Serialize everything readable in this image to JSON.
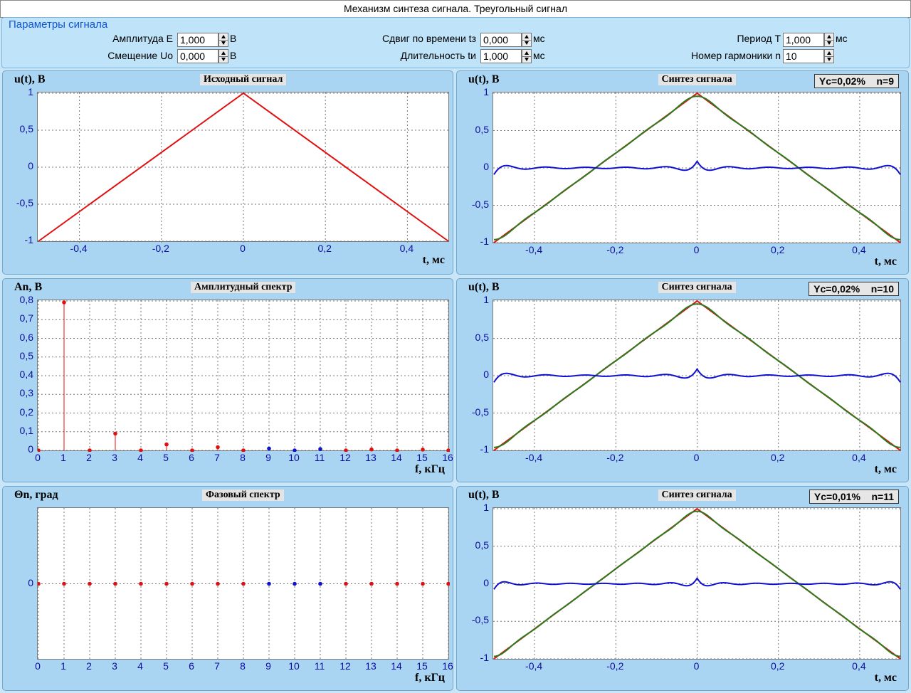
{
  "window": {
    "title": "Механизм синтеза сигнала. Треугольный сигнал"
  },
  "params": {
    "title": "Параметры сигнала",
    "amplitude": {
      "label": "Амплитуда  E",
      "value": "1,000",
      "unit": "В"
    },
    "offset": {
      "label": "Смещение  Uo",
      "value": "0,000",
      "unit": "В"
    },
    "shift": {
      "label": "Сдвиг по времени  tз",
      "value": "0,000",
      "unit": "мс"
    },
    "duration": {
      "label": "Длительность  tи",
      "value": "1,000",
      "unit": "мс"
    },
    "period": {
      "label": "Период  T",
      "value": "1,000",
      "unit": "мс"
    },
    "harmonic": {
      "label": "Номер гармоники  n",
      "value": "10"
    }
  },
  "colors": {
    "signal": "#e01010",
    "synth": "#2d7a1f",
    "error": "#1010d0",
    "spec_low": "#e01010",
    "spec_high": "#1010d0",
    "tick": "#0e0e9e"
  },
  "panels": {
    "source": {
      "title": "Исходный сигнал",
      "ylabel": "u(t), В",
      "xlabel": "t, мс"
    },
    "amp": {
      "title": "Амплитудный спектр",
      "ylabel": "An, В",
      "xlabel": "f, кГц"
    },
    "phase": {
      "title": "Фазовый спектр",
      "ylabel": "Θn, град",
      "xlabel": "f, кГц"
    },
    "syn1": {
      "title": "Синтез сигнала",
      "ylabel": "u(t), В",
      "xlabel": "t, мс",
      "badge": "Yc=0,02%    n=9"
    },
    "syn2": {
      "title": "Синтез сигнала",
      "ylabel": "u(t), В",
      "xlabel": "t, мс",
      "badge": "Yc=0,02%    n=10"
    },
    "syn3": {
      "title": "Синтез сигнала",
      "ylabel": "u(t), В",
      "xlabel": "t, мс",
      "badge": "Yc=0,01%    n=11"
    }
  },
  "chart_data": [
    {
      "id": "source",
      "type": "line",
      "xlim": [
        -0.5,
        0.5
      ],
      "ylim": [
        -1,
        1
      ],
      "xticks": [
        "-0,4",
        "-0,2",
        "0",
        "0,2",
        "0,4"
      ],
      "xtick_values": [
        -0.4,
        -0.2,
        0,
        0.2,
        0.4
      ],
      "yticks": [
        "1",
        "0,5",
        "0",
        "-0,5",
        "-1"
      ],
      "ytick_values": [
        1,
        0.5,
        0,
        -0.5,
        -1
      ],
      "series": [
        {
          "x": [
            -0.5,
            0,
            0.5
          ],
          "y": [
            -1,
            1,
            -1
          ]
        }
      ]
    },
    {
      "id": "amp",
      "type": "stem",
      "xlim": [
        0,
        16
      ],
      "ylim": [
        0,
        0.8
      ],
      "xticks": [
        "0",
        "1",
        "2",
        "3",
        "4",
        "5",
        "6",
        "7",
        "8",
        "9",
        "10",
        "11",
        "12",
        "13",
        "14",
        "15",
        "16"
      ],
      "yticks": [
        "0,8",
        "0,7",
        "0,6",
        "0,5",
        "0,4",
        "0,3",
        "0,2",
        "0,1",
        "0"
      ],
      "ytick_values": [
        0.8,
        0.7,
        0.6,
        0.5,
        0.4,
        0.3,
        0.2,
        0.1,
        0
      ],
      "x": [
        0,
        1,
        2,
        3,
        4,
        5,
        6,
        7,
        8,
        9,
        10,
        11,
        12,
        13,
        14,
        15,
        16
      ],
      "values": [
        0,
        0.811,
        0,
        0.09,
        0,
        0.032,
        0,
        0.017,
        0,
        0.01,
        0,
        0.007,
        0,
        0.005,
        0,
        0.004,
        0
      ],
      "harmonic_limit": 8
    },
    {
      "id": "phase",
      "type": "scatter",
      "xlim": [
        0,
        16
      ],
      "ylim": [
        -1,
        1
      ],
      "xticks": [
        "0",
        "1",
        "2",
        "3",
        "4",
        "5",
        "6",
        "7",
        "8",
        "9",
        "10",
        "11",
        "12",
        "13",
        "14",
        "15",
        "16"
      ],
      "yticks": [
        "0"
      ],
      "ytick_values": [
        0
      ],
      "x": [
        0,
        1,
        2,
        3,
        4,
        5,
        6,
        7,
        8,
        9,
        10,
        11,
        12,
        13,
        14,
        15,
        16
      ],
      "values": [
        0,
        0,
        0,
        0,
        0,
        0,
        0,
        0,
        0,
        0,
        0,
        0,
        0,
        0,
        0,
        0,
        0
      ],
      "harmonic_limit": 8
    },
    {
      "id": "syn1",
      "type": "line",
      "xlim": [
        -0.5,
        0.5
      ],
      "ylim": [
        -1,
        1
      ],
      "harmonics": 9,
      "xticks": [
        "-0,4",
        "-0,2",
        "0",
        "0,2",
        "0,4"
      ],
      "xtick_values": [
        -0.4,
        -0.2,
        0,
        0.2,
        0.4
      ],
      "yticks": [
        "1",
        "0,5",
        "0",
        "-0,5",
        "-1"
      ],
      "ytick_values": [
        1,
        0.5,
        0,
        -0.5,
        -1
      ]
    },
    {
      "id": "syn2",
      "type": "line",
      "xlim": [
        -0.5,
        0.5
      ],
      "ylim": [
        -1,
        1
      ],
      "harmonics": 10,
      "xticks": [
        "-0,4",
        "-0,2",
        "0",
        "0,2",
        "0,4"
      ],
      "xtick_values": [
        -0.4,
        -0.2,
        0,
        0.2,
        0.4
      ],
      "yticks": [
        "1",
        "0,5",
        "0",
        "-0,5",
        "-1"
      ],
      "ytick_values": [
        1,
        0.5,
        0,
        -0.5,
        -1
      ]
    },
    {
      "id": "syn3",
      "type": "line",
      "xlim": [
        -0.5,
        0.5
      ],
      "ylim": [
        -1,
        1
      ],
      "harmonics": 11,
      "xticks": [
        "-0,4",
        "-0,2",
        "0",
        "0,2",
        "0,4"
      ],
      "xtick_values": [
        -0.4,
        -0.2,
        0,
        0.2,
        0.4
      ],
      "yticks": [
        "1",
        "0,5",
        "0",
        "-0,5",
        "-1"
      ],
      "ytick_values": [
        1,
        0.5,
        0,
        -0.5,
        -1
      ]
    }
  ]
}
